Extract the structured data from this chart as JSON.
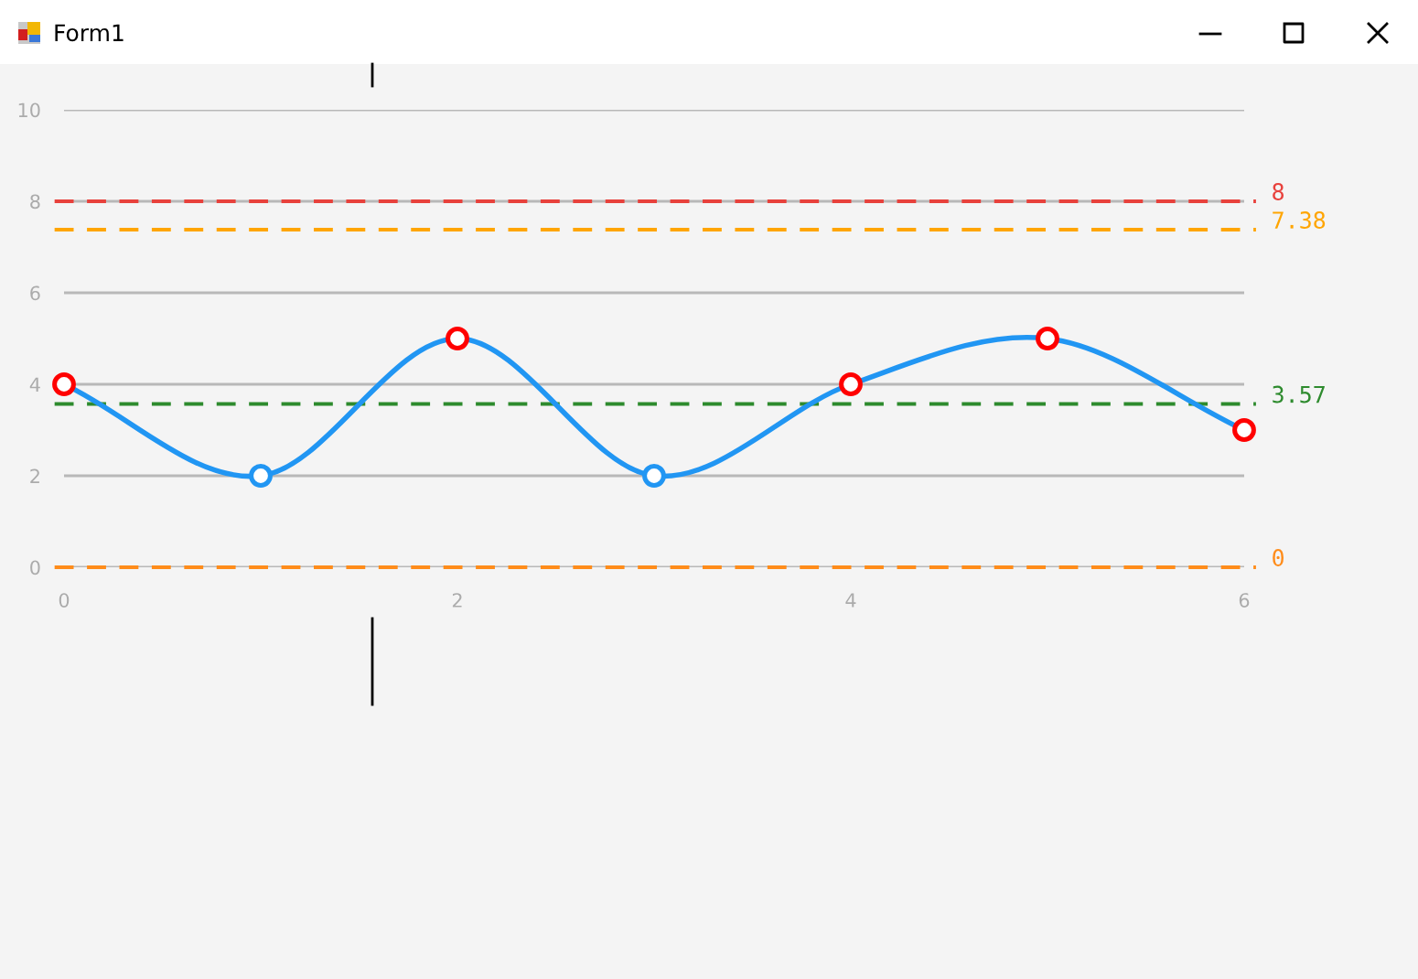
{
  "chart_data": {
    "type": "line",
    "title": "Form1",
    "x": [
      0,
      1,
      2,
      3,
      4,
      5,
      6
    ],
    "series": [
      {
        "color": "#2196f3",
        "colors": [
          "#ff0000",
          "#2196f3",
          "#ff0000",
          "#2196f3",
          "#ff0000",
          "#ff0000",
          "#ff0000"
        ],
        "values": [
          4,
          2,
          5,
          2,
          4,
          5,
          3
        ]
      }
    ],
    "xlim": [
      0,
      6
    ],
    "ylim": [
      0,
      10
    ],
    "xticks": [
      0,
      2,
      4,
      6
    ],
    "yticks": [
      0,
      2,
      4,
      6,
      8,
      10
    ],
    "grid": "y",
    "marker": "circle",
    "line_style": "solid",
    "ref_lines": [
      {
        "axis": "y",
        "value": 8,
        "label": "8",
        "color": "#e8413c",
        "line_style": "dashed"
      },
      {
        "axis": "y",
        "value": 7.38,
        "label": "7.38",
        "color": "#ffa500",
        "line_style": "dashed"
      },
      {
        "axis": "y",
        "value": 3.57,
        "label": "3.57",
        "color": "#2e8b2e",
        "line_style": "dashed"
      },
      {
        "axis": "y",
        "value": 0,
        "label": "0",
        "color": "#ff8c1a",
        "line_style": "dashed"
      }
    ]
  }
}
